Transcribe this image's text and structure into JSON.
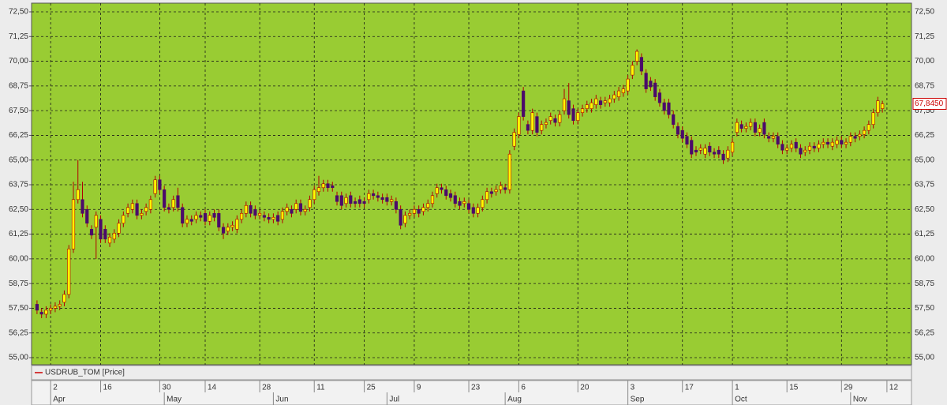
{
  "chart_data": {
    "type": "candlestick",
    "series": [
      {
        "name": "USDRUB_TOM [Price]",
        "line_color": "#cc0000",
        "up_color": "#ffff00",
        "down_color": "#4b0a6b",
        "wick_color": "#b00000",
        "open": [
          57.7,
          57.3,
          57.2,
          57.4,
          57.5,
          57.6,
          57.8,
          58.2,
          60.5,
          63,
          63,
          62.5,
          61.5,
          61.6,
          62,
          61.5,
          60.8,
          61,
          61.3,
          61.8,
          62.3,
          62.5,
          62.8,
          62.2,
          62.4,
          62.5,
          63.3,
          64,
          63.5,
          62.6,
          62.6,
          63.2,
          62.6,
          61.8,
          62,
          62,
          62.2,
          62.3,
          61.9,
          62.3,
          62.3,
          61.6,
          61.4,
          61.6,
          61.5,
          62,
          62.3,
          62.7,
          62.5,
          62.2,
          62.2,
          62.1,
          62,
          62.2,
          62,
          62.4,
          62.5,
          62.5,
          62.8,
          62.4,
          62.6,
          63,
          63.4,
          63.6,
          63.8,
          63.7,
          63.2,
          63.2,
          62.8,
          63.2,
          62.9,
          63,
          62.9,
          63,
          63.3,
          63.2,
          63.1,
          63.1,
          62.9,
          62.9,
          62.5,
          61.8,
          62.2,
          62.3,
          62.5,
          62.4,
          62.6,
          62.8,
          63.3,
          63.6,
          63.5,
          63.3,
          63.2,
          62.9,
          62.8,
          62.8,
          62.6,
          62.3,
          62.6,
          63,
          63.4,
          63.4,
          63.5,
          63.6,
          63.5,
          65.7,
          66.3,
          68.5,
          66.8,
          66.5,
          67.2,
          66.5,
          66.8,
          67,
          67.1,
          66.9,
          67.5,
          68,
          67.6,
          67,
          67.4,
          67.6,
          67.6,
          67.8,
          68,
          67.9,
          67.9,
          68.1,
          68.2,
          68.4,
          68.5,
          69.3,
          70,
          70.2,
          69.4,
          69,
          68.9,
          68.4,
          67.9,
          67.9,
          67.3,
          66.7,
          66.5,
          66.2,
          66,
          65.5,
          65.5,
          65.3,
          65.7,
          65.4,
          65.5,
          65.3,
          65.1,
          65.4,
          66.4,
          66.8,
          66.6,
          66.7,
          66.9,
          66.4,
          66.9,
          66.2,
          66.1,
          66.2,
          65.8,
          65.5,
          65.6,
          65.9,
          65.6,
          65.4,
          65.5,
          65.7,
          65.6,
          65.8,
          65.9,
          65.7,
          65.8,
          66,
          65.8,
          65.9,
          66.2,
          66.2,
          66.3,
          66.5,
          66.8,
          67.4,
          67.6
        ],
        "high": [
          57.9,
          57.5,
          57.6,
          57.7,
          57.8,
          57.9,
          58.4,
          60.7,
          63.9,
          65.0,
          63.9,
          62.7,
          61.7,
          62.4,
          62.2,
          61.7,
          61.3,
          61.5,
          62,
          62.4,
          62.8,
          63,
          63,
          62.5,
          62.8,
          63.2,
          64.2,
          64.2,
          63.7,
          62.8,
          63.2,
          63.6,
          62.8,
          62.2,
          62.2,
          62.4,
          62.4,
          62.5,
          62.4,
          62.5,
          62.5,
          61.8,
          61.8,
          61.9,
          62.2,
          62.5,
          62.9,
          62.9,
          62.7,
          62.5,
          62.4,
          62.3,
          62.3,
          62.4,
          62.6,
          62.8,
          62.7,
          63,
          63,
          62.7,
          63.2,
          63.7,
          64.2,
          64,
          64,
          63.9,
          63.4,
          63.4,
          63.3,
          63.4,
          63.1,
          63.2,
          63.1,
          63.5,
          63.5,
          63.4,
          63.3,
          63.3,
          63.2,
          63.1,
          62.7,
          62.4,
          62.5,
          62.7,
          62.7,
          62.8,
          63,
          63.4,
          63.8,
          63.8,
          63.7,
          63.5,
          63.4,
          63.1,
          63.1,
          63,
          62.8,
          62.8,
          63.2,
          63.6,
          63.6,
          63.7,
          63.9,
          63.8,
          65.5,
          66.6,
          67.4,
          68.7,
          67,
          67.6,
          67.4,
          67,
          67.1,
          67.4,
          67.3,
          67.5,
          68.6,
          68.9,
          67.8,
          67.6,
          67.8,
          68,
          68.1,
          68.3,
          68.2,
          68.2,
          68.3,
          68.5,
          68.7,
          68.8,
          69.3,
          70,
          70.6,
          70.4,
          69.6,
          69.2,
          69.1,
          68.6,
          68.1,
          68.1,
          67.5,
          66.9,
          66.7,
          66.4,
          66.2,
          65.7,
          65.8,
          65.8,
          65.9,
          65.6,
          65.7,
          65.5,
          65.7,
          66.1,
          67.1,
          67,
          66.9,
          67.1,
          67.1,
          66.8,
          67.1,
          66.4,
          66.4,
          66.4,
          66,
          65.8,
          66,
          66.1,
          65.8,
          65.7,
          65.9,
          65.9,
          66,
          66.1,
          66.1,
          66.1,
          66.2,
          66.2,
          66.1,
          66.4,
          66.4,
          66.5,
          66.7,
          67,
          67.6,
          68.2,
          68.0
        ],
        "low": [
          57.2,
          57.0,
          57.0,
          57.2,
          57.3,
          57.4,
          57.6,
          58.0,
          60.3,
          62.8,
          62.1,
          61.6,
          61.0,
          60.0,
          60.8,
          60.8,
          60.6,
          60.8,
          61.1,
          61.6,
          62.1,
          62.3,
          62,
          62,
          62.2,
          62.3,
          63.1,
          63.3,
          62.4,
          62.3,
          62.4,
          62.4,
          61.6,
          61.6,
          61.7,
          61.8,
          61.9,
          61.7,
          61.7,
          61.9,
          61.4,
          61.0,
          61.2,
          61.4,
          61.3,
          61.8,
          62.1,
          62.1,
          62,
          62,
          61.9,
          61.8,
          61.8,
          61.7,
          61.8,
          62.2,
          62.1,
          62.3,
          62.2,
          62.2,
          62.4,
          62.8,
          63.2,
          63.4,
          63.4,
          63.4,
          62.7,
          62.5,
          62.6,
          62.6,
          62.6,
          62.6,
          62.6,
          62.8,
          63,
          62.9,
          62.8,
          62.7,
          62.7,
          62.3,
          61.5,
          61.6,
          62,
          62.1,
          62.1,
          62.2,
          62.4,
          62.6,
          63.1,
          63.3,
          63,
          62.9,
          62.6,
          62.5,
          62.6,
          62.3,
          62.1,
          62.1,
          62.4,
          62.8,
          63.1,
          63.2,
          63.3,
          63.3,
          63.3,
          65.5,
          66.1,
          67,
          66.3,
          66.3,
          66.2,
          66.3,
          66.6,
          66.8,
          66.7,
          66.7,
          67.3,
          67.1,
          66.8,
          66.8,
          67.2,
          67.4,
          67.4,
          67.6,
          67.6,
          67.7,
          67.7,
          67.9,
          68,
          68.2,
          68.3,
          69.1,
          69.8,
          69.3,
          68.4,
          68.5,
          68,
          67.7,
          67.3,
          67.1,
          66.6,
          66.1,
          65.9,
          65.6,
          65.1,
          65.2,
          65.3,
          65.1,
          65.2,
          65.1,
          65.1,
          64.8,
          64.9,
          65.2,
          66.2,
          66.4,
          66.4,
          66.5,
          66.2,
          66.2,
          66.1,
          65.9,
          65.9,
          65.6,
          65.3,
          65.3,
          65.4,
          65.4,
          65.1,
          65.2,
          65.3,
          65.4,
          65.4,
          65.6,
          65.6,
          65.5,
          65.6,
          65.6,
          65.6,
          65.7,
          65.9,
          66,
          66.1,
          66.3,
          66.6,
          67.2,
          67.4
        ],
        "close": [
          57.4,
          57.2,
          57.4,
          57.5,
          57.6,
          57.7,
          58.2,
          60.5,
          63,
          63.5,
          62.3,
          61.8,
          61.2,
          62.2,
          61,
          61,
          61.1,
          61.3,
          61.8,
          62.2,
          62.6,
          62.8,
          62.2,
          62.3,
          62.6,
          63,
          64,
          63.5,
          62.6,
          62.5,
          63,
          62.6,
          61.8,
          62,
          61.9,
          62.2,
          62.1,
          61.9,
          62.2,
          62.1,
          61.6,
          61.3,
          61.6,
          61.7,
          62,
          62.3,
          62.7,
          62.3,
          62.2,
          62.3,
          62.1,
          62,
          62.1,
          61.9,
          62.4,
          62.6,
          62.3,
          62.8,
          62.4,
          62.5,
          63,
          63.5,
          63.6,
          63.8,
          63.6,
          63.6,
          62.9,
          62.7,
          63.1,
          62.8,
          62.8,
          62.8,
          62.8,
          63.3,
          63.2,
          63.1,
          63,
          62.9,
          63,
          62.5,
          61.7,
          62.2,
          62.3,
          62.5,
          62.3,
          62.6,
          62.8,
          63.2,
          63.6,
          63.5,
          63.2,
          63.1,
          62.8,
          62.7,
          62.9,
          62.5,
          62.3,
          62.6,
          63,
          63.4,
          63.3,
          63.5,
          63.7,
          63.5,
          65.3,
          66.4,
          67.2,
          67.2,
          66.5,
          67.4,
          66.4,
          66.8,
          66.9,
          67.2,
          66.9,
          67.3,
          68.1,
          67.3,
          67,
          67.4,
          67.6,
          67.8,
          67.9,
          68.1,
          67.8,
          68,
          68.1,
          68.3,
          68.5,
          68.6,
          69.1,
          69.8,
          70.5,
          69.5,
          68.6,
          68.7,
          68.2,
          67.9,
          67.5,
          67.3,
          66.8,
          66.3,
          66.1,
          65.8,
          65.3,
          65.4,
          65.6,
          65.6,
          65.4,
          65.3,
          65.3,
          65,
          65.5,
          65.9,
          66.9,
          66.6,
          66.7,
          66.9,
          66.4,
          66.6,
          66.3,
          66.1,
          66.2,
          65.8,
          65.5,
          65.6,
          65.8,
          65.6,
          65.3,
          65.5,
          65.7,
          65.6,
          65.8,
          65.9,
          65.8,
          65.9,
          66,
          65.8,
          65.9,
          66.2,
          66.1,
          66.3,
          66.5,
          66.8,
          67.4,
          68,
          67.845
        ],
        "last_label": "67,8450"
      }
    ],
    "ylim": [
      55,
      72.5
    ],
    "yticks": [
      {
        "value": 55,
        "label": "55,00"
      },
      {
        "value": 56.25,
        "label": "56,25"
      },
      {
        "value": 57.5,
        "label": "57,50"
      },
      {
        "value": 58.75,
        "label": "58,75"
      },
      {
        "value": 60,
        "label": "60,00"
      },
      {
        "value": 61.25,
        "label": "61,25"
      },
      {
        "value": 62.5,
        "label": "62,50"
      },
      {
        "value": 63.75,
        "label": "63,75"
      },
      {
        "value": 65,
        "label": "65,00"
      },
      {
        "value": 66.25,
        "label": "66,25"
      },
      {
        "value": 67.5,
        "label": "67,50"
      },
      {
        "value": 68.75,
        "label": "68,75"
      },
      {
        "value": 70,
        "label": "70,00"
      },
      {
        "value": 71.25,
        "label": "71,25"
      },
      {
        "value": 72.5,
        "label": "72,50"
      }
    ],
    "xlim": [
      -1.2,
      192.4
    ],
    "xticks": [
      {
        "value": 3,
        "label": "2"
      },
      {
        "value": 14,
        "label": "16"
      },
      {
        "value": 27,
        "label": "30"
      },
      {
        "value": 37,
        "label": "14"
      },
      {
        "value": 49,
        "label": "28"
      },
      {
        "value": 61,
        "label": "11"
      },
      {
        "value": 72,
        "label": "25"
      },
      {
        "value": 83,
        "label": "9"
      },
      {
        "value": 95,
        "label": "23"
      },
      {
        "value": 106,
        "label": "6"
      },
      {
        "value": 119,
        "label": "20"
      },
      {
        "value": 130,
        "label": "3"
      },
      {
        "value": 142,
        "label": "17"
      },
      {
        "value": 153,
        "label": "1"
      },
      {
        "value": 165,
        "label": "15"
      },
      {
        "value": 177,
        "label": "29"
      },
      {
        "value": 187,
        "label": "12"
      }
    ],
    "month_ticks": [
      {
        "value": 3,
        "label": "Apr"
      },
      {
        "value": 28,
        "label": "May"
      },
      {
        "value": 52,
        "label": "Jun"
      },
      {
        "value": 77,
        "label": "Jul"
      },
      {
        "value": 103,
        "label": "Aug"
      },
      {
        "value": 130,
        "label": "Sep"
      },
      {
        "value": 153,
        "label": "Oct"
      },
      {
        "value": 179,
        "label": "Nov"
      }
    ],
    "grid": true,
    "background": "#99cc33"
  }
}
